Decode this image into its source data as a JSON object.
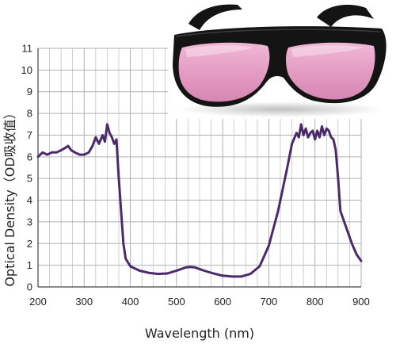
{
  "chart_data": {
    "type": "line",
    "xlabel": "Wavelength (nm)",
    "ylabel": "Optical Density（OD吸收值）",
    "xlim": [
      200,
      900
    ],
    "ylim": [
      0,
      11
    ],
    "xticks": [
      200,
      300,
      400,
      500,
      600,
      700,
      800,
      900
    ],
    "yticks": [
      0,
      1,
      2,
      3,
      4,
      5,
      6,
      7,
      8,
      9,
      10,
      11
    ],
    "grid": true,
    "series": [
      {
        "color": "#4b2a6b",
        "x": [
          200,
          210,
          220,
          230,
          240,
          250,
          258,
          265,
          272,
          280,
          290,
          300,
          310,
          318,
          325,
          332,
          340,
          345,
          350,
          355,
          360,
          365,
          370,
          372,
          375,
          380,
          385,
          390,
          400,
          420,
          440,
          460,
          480,
          500,
          520,
          530,
          540,
          560,
          580,
          600,
          620,
          640,
          660,
          680,
          700,
          720,
          740,
          750,
          760,
          765,
          770,
          775,
          780,
          785,
          790,
          795,
          800,
          805,
          810,
          815,
          820,
          825,
          830,
          835,
          840,
          845,
          850,
          855,
          860,
          870,
          880,
          890,
          900
        ],
        "y": [
          6.0,
          6.2,
          6.1,
          6.2,
          6.2,
          6.3,
          6.4,
          6.5,
          6.3,
          6.2,
          6.1,
          6.1,
          6.2,
          6.5,
          6.9,
          6.6,
          7.0,
          6.7,
          7.5,
          7.1,
          6.9,
          6.6,
          6.8,
          6.0,
          5.0,
          3.5,
          2.0,
          1.3,
          0.95,
          0.75,
          0.65,
          0.6,
          0.62,
          0.75,
          0.9,
          0.92,
          0.9,
          0.75,
          0.62,
          0.52,
          0.48,
          0.48,
          0.6,
          0.95,
          1.9,
          3.5,
          5.5,
          6.6,
          7.1,
          6.9,
          7.5,
          7.0,
          7.3,
          6.9,
          7.1,
          7.2,
          6.8,
          7.2,
          6.9,
          7.4,
          7.0,
          7.3,
          7.2,
          6.9,
          6.8,
          6.3,
          5.0,
          3.5,
          3.2,
          2.6,
          2.0,
          1.5,
          1.2
        ]
      }
    ]
  },
  "colors": {
    "grid": "#b0b0b0",
    "axis": "#444444",
    "line": "#4b2a6b",
    "lens": "#e6a0c6",
    "frame": "#141414"
  },
  "image": {
    "subject": "tinted safety glasses"
  }
}
